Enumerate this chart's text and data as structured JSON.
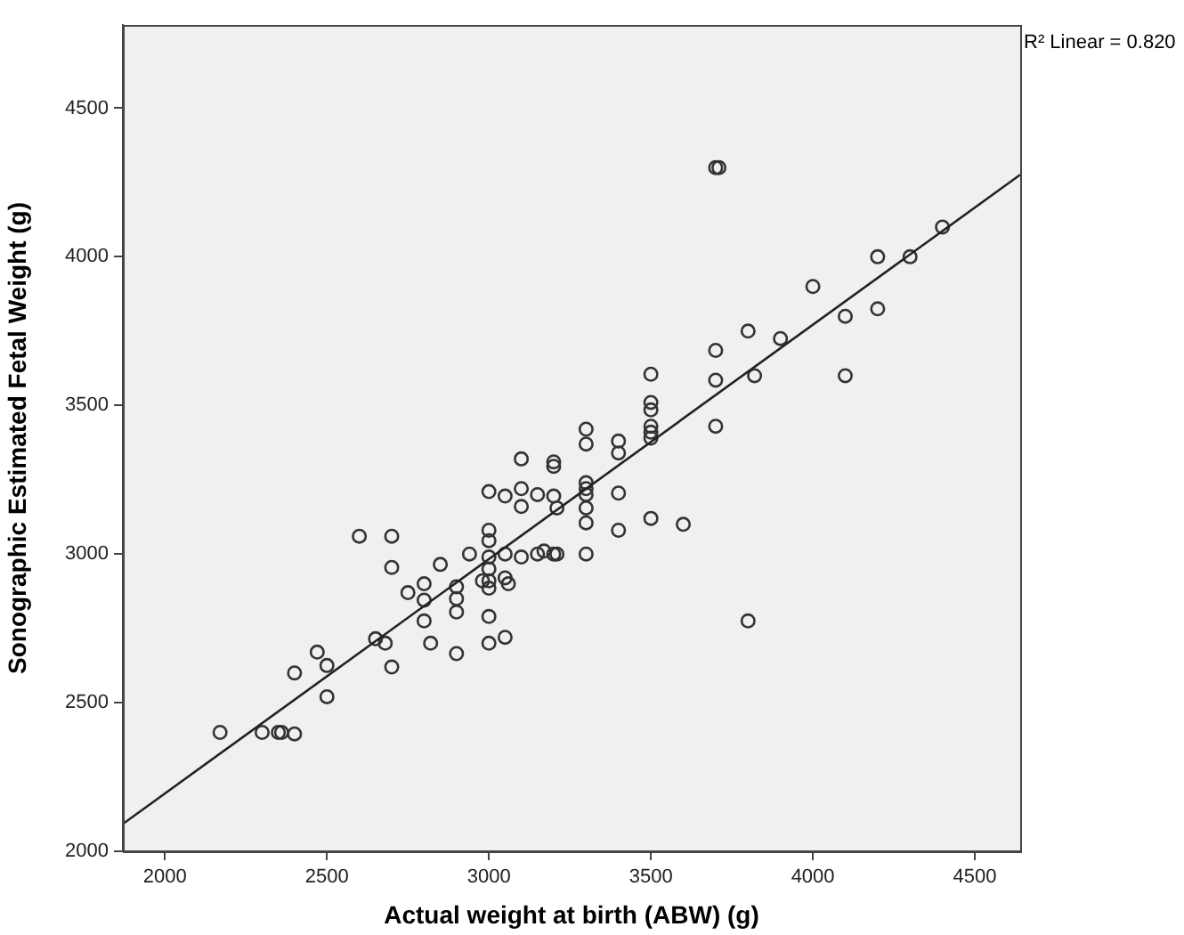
{
  "chart_data": {
    "type": "scatter",
    "xlabel": "Actual weight at birth (ABW) (g)",
    "ylabel": "Sonographic Estimated Fetal Weight (g)",
    "xlim": [
      1870,
      4640
    ],
    "ylim": [
      2000,
      4780
    ],
    "xticks": [
      2000,
      2500,
      3000,
      3500,
      4000,
      4500
    ],
    "yticks": [
      2000,
      2500,
      3000,
      3500,
      4000,
      4500
    ],
    "grid": false,
    "annotations": [
      "R² Linear = 0.820"
    ],
    "series": [
      {
        "marker": "circle",
        "color": "#333333",
        "x": [
          2170,
          2300,
          2350,
          2360,
          2400,
          2400,
          2470,
          2500,
          2500,
          2600,
          2650,
          2680,
          2700,
          2700,
          2700,
          2750,
          2800,
          2800,
          2800,
          2820,
          2850,
          2900,
          2900,
          2900,
          2900,
          2940,
          2980,
          3000,
          3000,
          3000,
          3000,
          3000,
          3000,
          3000,
          3000,
          3000,
          3050,
          3050,
          3050,
          3060,
          3050,
          3100,
          3100,
          3100,
          3100,
          3150,
          3150,
          3170,
          3200,
          3200,
          3200,
          3210,
          3200,
          3210,
          3300,
          3300,
          3300,
          3300,
          3300,
          3300,
          3300,
          3300,
          3400,
          3400,
          3400,
          3400,
          3500,
          3500,
          3500,
          3500,
          3500,
          3500,
          3500,
          3600,
          3700,
          3710,
          3700,
          3700,
          3700,
          3800,
          3800,
          3820,
          3900,
          4000,
          4100,
          4100,
          4200,
          4200,
          4300,
          4400
        ],
        "values": [
          2400,
          2400,
          2400,
          2400,
          2395,
          2600,
          2670,
          2625,
          2520,
          3060,
          2715,
          2700,
          3060,
          2955,
          2620,
          2870,
          2900,
          2845,
          2775,
          2700,
          2965,
          2890,
          2850,
          2805,
          2665,
          3000,
          2910,
          3210,
          3080,
          3045,
          2990,
          2950,
          2910,
          2885,
          2790,
          2700,
          3195,
          3000,
          2920,
          2900,
          2720,
          3320,
          3220,
          3160,
          2990,
          3200,
          3000,
          3010,
          3310,
          3295,
          3195,
          3155,
          3000,
          3000,
          3420,
          3370,
          3240,
          3220,
          3200,
          3155,
          3105,
          3000,
          3380,
          3340,
          3205,
          3080,
          3605,
          3510,
          3485,
          3430,
          3410,
          3390,
          3120,
          3100,
          4300,
          4300,
          3685,
          3585,
          3430,
          3750,
          2775,
          3600,
          3725,
          3900,
          3800,
          3600,
          4000,
          3825,
          4000,
          4100
        ]
      },
      {
        "type": "line",
        "marker": "none",
        "color": "#222222",
        "x": [
          1870,
          4640
        ],
        "values": [
          2092,
          4276
        ]
      }
    ]
  }
}
